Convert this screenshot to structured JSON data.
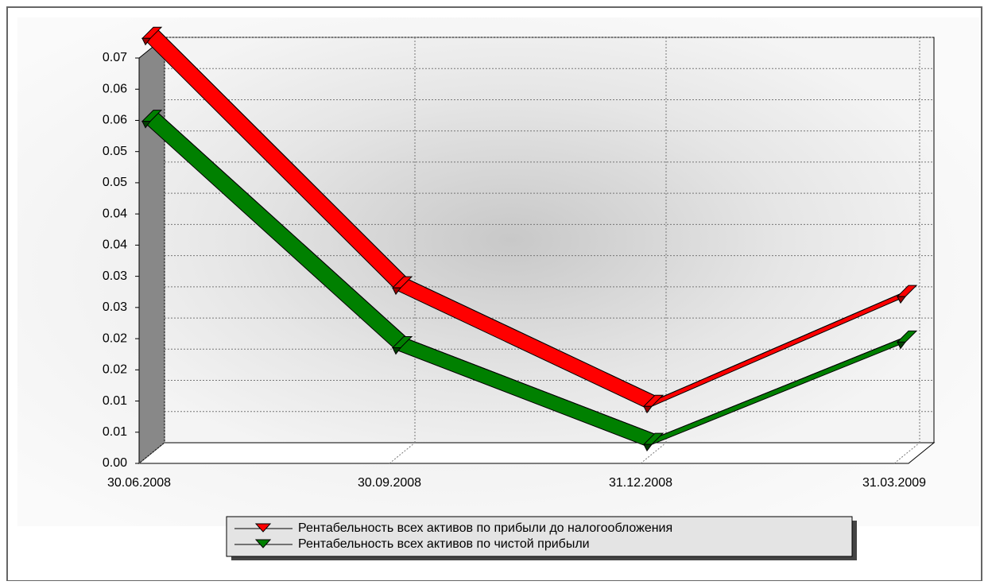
{
  "chart_data": {
    "type": "line",
    "categories": [
      "30.06.2008",
      "30.09.2008",
      "31.12.2008",
      "31.03.2009"
    ],
    "series": [
      {
        "name": "Рентабельность всех активов по прибыли до налогообложения",
        "color": "#ff0000",
        "values": [
          0.067,
          0.027,
          0.008,
          0.0256
        ]
      },
      {
        "name": "Рентабельность всех активов по чистой прибыли",
        "color": "#008000",
        "values": [
          0.0537,
          0.0174,
          0.0019,
          0.0183
        ]
      }
    ],
    "ylim": [
      0,
      0.065
    ],
    "yticks": [
      {
        "value": 0,
        "label": "0.00"
      },
      {
        "value": 0.005,
        "label": "0.01"
      },
      {
        "value": 0.01,
        "label": "0.01"
      },
      {
        "value": 0.015,
        "label": "0.02"
      },
      {
        "value": 0.02,
        "label": "0.02"
      },
      {
        "value": 0.025,
        "label": "0.03"
      },
      {
        "value": 0.03,
        "label": "0.03"
      },
      {
        "value": 0.035,
        "label": "0.04"
      },
      {
        "value": 0.04,
        "label": "0.04"
      },
      {
        "value": 0.045,
        "label": "0.05"
      },
      {
        "value": 0.05,
        "label": "0.05"
      },
      {
        "value": 0.055,
        "label": "0.06"
      },
      {
        "value": 0.06,
        "label": "0.06"
      },
      {
        "value": 0.065,
        "label": "0.07"
      }
    ],
    "grid": true,
    "legend": "bottom"
  }
}
